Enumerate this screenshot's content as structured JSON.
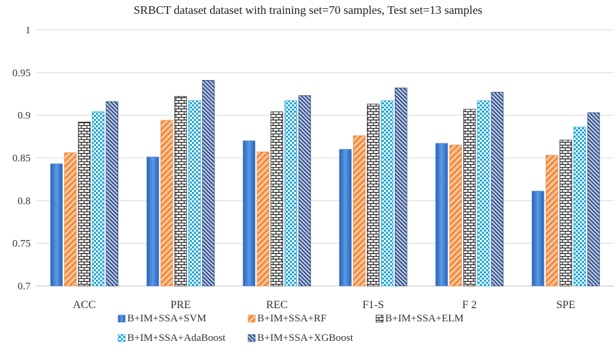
{
  "chart_data": {
    "type": "bar",
    "title": "SRBCT dataset dataset with training set=70 samples, Test set=13 samples",
    "xlabel": "",
    "ylabel": "",
    "ylim": [
      0.7,
      1.0
    ],
    "yticks": [
      "0.7",
      "0.75",
      "0.8",
      "0.85",
      "0.9",
      "0.95",
      "1"
    ],
    "grid": true,
    "legend_position": "bottom",
    "categories": [
      "ACC",
      "PRE",
      "REC",
      "F1-S",
      "F 2",
      "SPE"
    ],
    "series": [
      {
        "name": "B+IM+SSA+SVM",
        "color": "#3f7fd0",
        "pattern": "solid-gradient",
        "values": [
          0.843,
          0.851,
          0.87,
          0.86,
          0.867,
          0.811
        ]
      },
      {
        "name": "B+IM+SSA+RF",
        "color": "#f08a3c",
        "pattern": "diagonal-hatch",
        "values": [
          0.856,
          0.894,
          0.857,
          0.876,
          0.865,
          0.853
        ]
      },
      {
        "name": "B+IM+SSA+ELM",
        "color": "#222222",
        "pattern": "brick-grid",
        "values": [
          0.892,
          0.922,
          0.904,
          0.913,
          0.907,
          0.871
        ]
      },
      {
        "name": "B+IM+SSA+AdaBoost",
        "color": "#1ea7dc",
        "pattern": "checker",
        "values": [
          0.904,
          0.917,
          0.917,
          0.917,
          0.917,
          0.886
        ]
      },
      {
        "name": "B+IM+SSA+XGBoost",
        "color": "#2f4f86",
        "pattern": "dense-diagonal",
        "values": [
          0.916,
          0.941,
          0.923,
          0.932,
          0.927,
          0.903
        ]
      }
    ]
  }
}
